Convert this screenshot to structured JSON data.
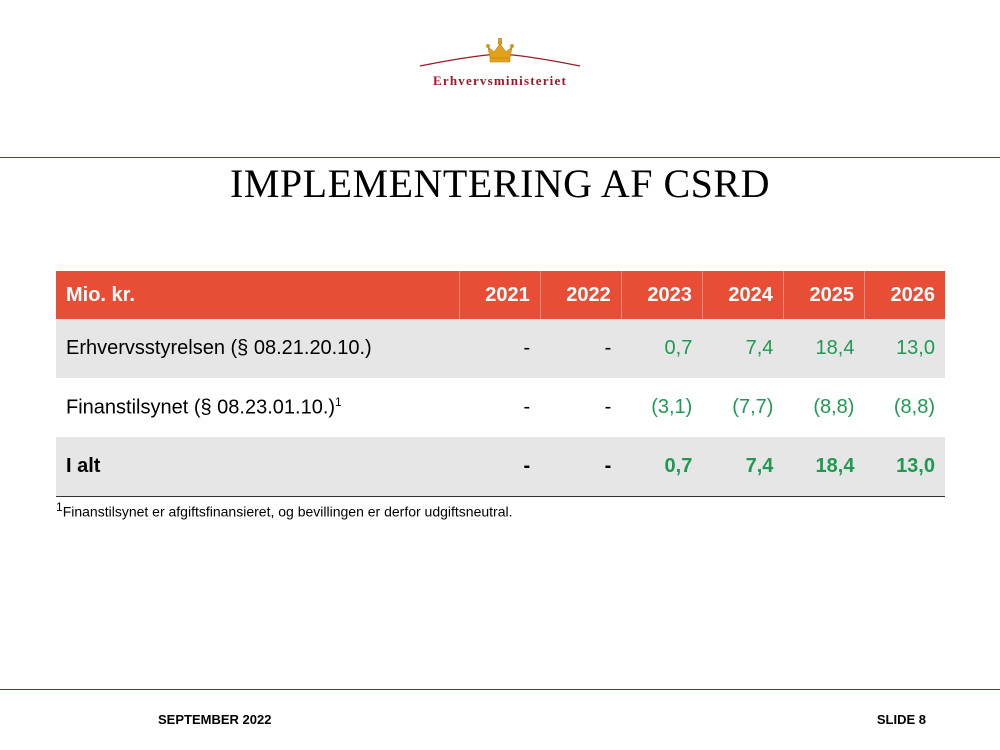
{
  "header": {
    "logo_text": "Erhvervsministeriet"
  },
  "slide": {
    "title": "IMPLEMENTERING AF CSRD"
  },
  "table": {
    "columns": [
      "Mio. kr.",
      "2021",
      "2022",
      "2023",
      "2024",
      "2025",
      "2026"
    ],
    "rows": [
      {
        "label": "Erhvervsstyrelsen (§ 08.21.20.10.)",
        "sup": "",
        "values": [
          "-",
          "-",
          "0,7",
          "7,4",
          "18,4",
          "13,0"
        ]
      },
      {
        "label": "Finanstilsynet (§ 08.23.01.10.)",
        "sup": "1",
        "values": [
          "-",
          "-",
          "(3,1)",
          "(7,7)",
          "(8,8)",
          "(8,8)"
        ]
      },
      {
        "label": "I alt",
        "sup": "",
        "values": [
          "-",
          "-",
          "0,7",
          "7,4",
          "18,4",
          "13,0"
        ]
      }
    ]
  },
  "footnote": {
    "sup": "1",
    "text": "Finanstilsynet er afgiftsfinansieret, og bevillingen er derfor udgiftsneutral."
  },
  "footer": {
    "date": "SEPTEMBER 2022",
    "slide": "SLIDE 8"
  },
  "colors": {
    "header_bg": "#e84e36",
    "positive_green": "#1e9a52",
    "brand_red": "#9a1a2a",
    "row_shade": "#e6e6e6"
  }
}
